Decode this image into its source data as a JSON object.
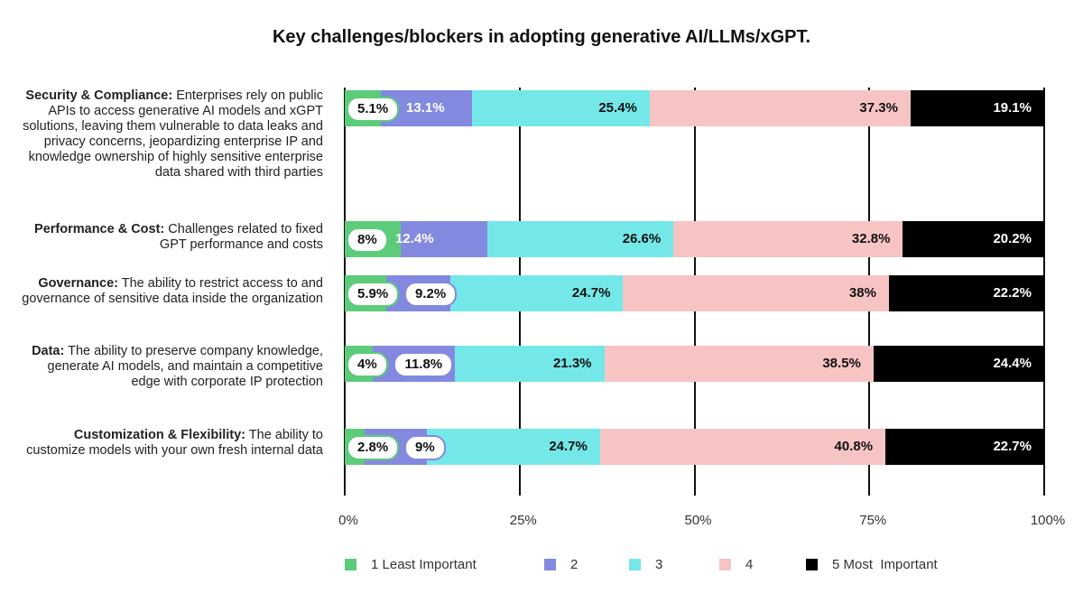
{
  "chart_data": {
    "type": "bar",
    "orientation": "horizontal",
    "stacked": true,
    "title": "Key challenges/blockers in adopting generative AI/LLMs/xGPT.",
    "categories": [
      {
        "bold": "Security & Compliance:",
        "text": " Enterprises rely on public APIs to access generative AI models and xGPT solutions, leaving them vulnerable to data leaks and privacy concerns, jeopardizing enterprise IP and knowledge ownership of highly sensitive enterprise data shared with third parties"
      },
      {
        "bold": "Performance & Cost:",
        "text": " Challenges related to fixed GPT performance and costs"
      },
      {
        "bold": "Governance:",
        "text": " The ability to restrict access to and governance of sensitive data inside the organization"
      },
      {
        "bold": "Data:",
        "text": " The ability to preserve company knowledge, generate AI models, and maintain a competitive edge with corporate IP protection"
      },
      {
        "bold": "Customization & Flexibility:",
        "text": " The ability to customize models with your own fresh internal data"
      }
    ],
    "series": [
      {
        "name": "1 Least Important",
        "color": "#5ccc7a",
        "values": [
          5.1,
          8,
          5.9,
          4,
          2.8
        ],
        "labels": [
          "5.1%",
          "8%",
          "5.9%",
          "4%",
          "2.8%"
        ]
      },
      {
        "name": "2",
        "color": "#8489e0",
        "values": [
          13.1,
          12.4,
          9.2,
          11.8,
          9
        ],
        "labels": [
          "13.1%",
          "12.4%",
          "9.2%",
          "11.8%",
          "9%"
        ]
      },
      {
        "name": "3",
        "color": "#74e8e8",
        "values": [
          25.4,
          26.6,
          24.7,
          21.3,
          24.7
        ],
        "labels": [
          "25.4%",
          "26.6%",
          "24.7%",
          "21.3%",
          "24.7%"
        ]
      },
      {
        "name": "4",
        "color": "#f7c4c4",
        "values": [
          37.3,
          32.8,
          38,
          38.5,
          40.8
        ],
        "labels": [
          "37.3%",
          "32.8%",
          "38%",
          "38.5%",
          "40.8%"
        ]
      },
      {
        "name": "5 Most  Important",
        "color": "#000000",
        "values": [
          19.1,
          20.2,
          22.2,
          24.4,
          22.7
        ],
        "labels": [
          "19.1%",
          "20.2%",
          "22.2%",
          "24.4%",
          "22.7%"
        ]
      }
    ],
    "xlim": [
      0,
      100
    ],
    "xticks": [
      "0%",
      "25%",
      "50%",
      "75%",
      "100%"
    ],
    "grid": true,
    "legend": "bottom"
  }
}
